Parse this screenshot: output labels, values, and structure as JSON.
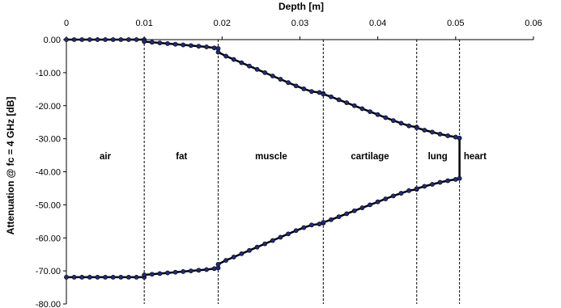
{
  "chart_data": {
    "type": "line",
    "title": "",
    "xlabel": "Depth [m]",
    "ylabel": "Attenuation @ fc = 4 GHz [dB]",
    "xlim": [
      0,
      0.06
    ],
    "ylim": [
      -80,
      0
    ],
    "x_axis_position": "top",
    "x_ticks": [
      0,
      0.01,
      0.02,
      0.03,
      0.04,
      0.05,
      0.06
    ],
    "x_tick_labels": [
      "0",
      "0.01",
      "0.02",
      "0.03",
      "0.04",
      "0.05",
      "0.06"
    ],
    "y_ticks": [
      0,
      -10,
      -20,
      -30,
      -40,
      -50,
      -60,
      -70,
      -80
    ],
    "y_tick_labels": [
      "0.00",
      "-10.00",
      "-20.00",
      "-30.00",
      "-40.00",
      "-50.00",
      "-60.00",
      "-70.00",
      "-80.00"
    ],
    "grid": false,
    "legend": "none",
    "line_color": "#000000",
    "marker_color": "#1f2a7a",
    "boundary_lines": [
      0.01,
      0.0195,
      0.033,
      0.045,
      0.0505
    ],
    "regions": [
      {
        "label": "air",
        "x": 0.005
      },
      {
        "label": "fat",
        "x": 0.0148
      },
      {
        "label": "muscle",
        "x": 0.0263
      },
      {
        "label": "cartilage",
        "x": 0.039
      },
      {
        "label": "lung",
        "x": 0.0477
      },
      {
        "label": "heart",
        "x": 0.0525
      }
    ],
    "series": [
      {
        "x": [
          0,
          0.001,
          0.002,
          0.003,
          0.004,
          0.005,
          0.006,
          0.007,
          0.008,
          0.009,
          0.01,
          0.01,
          0.011,
          0.012,
          0.013,
          0.014,
          0.015,
          0.016,
          0.017,
          0.018,
          0.019,
          0.0195,
          0.0195,
          0.0205,
          0.0215,
          0.0225,
          0.0235,
          0.0245,
          0.0255,
          0.0265,
          0.0275,
          0.0285,
          0.0295,
          0.0305,
          0.0315,
          0.0325,
          0.033,
          0.033,
          0.034,
          0.035,
          0.036,
          0.037,
          0.038,
          0.039,
          0.04,
          0.041,
          0.042,
          0.043,
          0.044,
          0.045,
          0.045,
          0.046,
          0.047,
          0.048,
          0.049,
          0.05,
          0.0505
        ],
        "values": [
          0,
          0,
          0,
          0,
          0,
          0,
          0,
          0,
          0,
          0,
          0,
          -0.6,
          -0.8,
          -1.0,
          -1.2,
          -1.4,
          -1.6,
          -1.8,
          -2.0,
          -2.2,
          -2.5,
          -2.7,
          -3.8,
          -5.0,
          -6.0,
          -7.0,
          -8.0,
          -9.0,
          -10.0,
          -11.0,
          -12.0,
          -13.0,
          -14.0,
          -14.9,
          -15.7,
          -16.0,
          -16.3,
          -16.5,
          -17.3,
          -18.2,
          -19.1,
          -20.0,
          -20.9,
          -21.8,
          -22.7,
          -23.6,
          -24.5,
          -25.3,
          -26.1,
          -26.5,
          -26.7,
          -27.4,
          -28.0,
          -28.6,
          -29.1,
          -29.5,
          -29.8
        ]
      },
      {
        "x": [
          0,
          0.001,
          0.002,
          0.003,
          0.004,
          0.005,
          0.006,
          0.007,
          0.008,
          0.009,
          0.01,
          0.01,
          0.011,
          0.012,
          0.013,
          0.014,
          0.015,
          0.016,
          0.017,
          0.018,
          0.019,
          0.0195,
          0.0195,
          0.0205,
          0.0215,
          0.0225,
          0.0235,
          0.0245,
          0.0255,
          0.0265,
          0.0275,
          0.0285,
          0.0295,
          0.0305,
          0.0315,
          0.0325,
          0.033,
          0.033,
          0.034,
          0.035,
          0.036,
          0.037,
          0.038,
          0.039,
          0.04,
          0.041,
          0.042,
          0.043,
          0.044,
          0.045,
          0.045,
          0.046,
          0.047,
          0.048,
          0.049,
          0.05,
          0.0505
        ],
        "values": [
          -71.9,
          -71.9,
          -71.9,
          -71.9,
          -71.9,
          -71.9,
          -71.9,
          -71.9,
          -71.9,
          -71.9,
          -71.9,
          -71.2,
          -71.0,
          -70.8,
          -70.6,
          -70.4,
          -70.2,
          -70.0,
          -69.8,
          -69.6,
          -69.3,
          -69.1,
          -68.0,
          -66.8,
          -65.8,
          -64.8,
          -63.8,
          -62.8,
          -61.8,
          -60.8,
          -59.8,
          -58.8,
          -57.8,
          -56.9,
          -56.1,
          -55.8,
          -55.5,
          -55.3,
          -54.5,
          -53.6,
          -52.7,
          -51.8,
          -50.9,
          -50.0,
          -49.1,
          -48.2,
          -47.3,
          -46.5,
          -45.7,
          -45.3,
          -45.1,
          -44.4,
          -43.8,
          -43.2,
          -42.7,
          -42.3,
          -42.0
        ]
      }
    ],
    "vertical_link": {
      "x": 0.0505,
      "from": -29.8,
      "to": -42.0
    }
  }
}
